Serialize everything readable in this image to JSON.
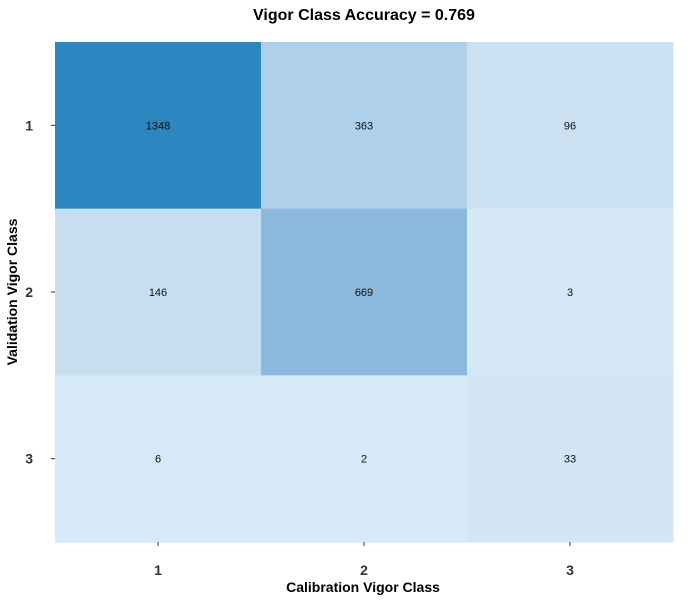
{
  "chart_data": {
    "type": "heatmap",
    "title": "Vigor Class  Accuracy =  0.769",
    "xlabel": "Calibration  Vigor Class",
    "ylabel": "Validation  Vigor Class",
    "x_categories": [
      "1",
      "2",
      "3"
    ],
    "y_categories": [
      "1",
      "2",
      "3"
    ],
    "cells": [
      {
        "x": "1",
        "y": "1",
        "value": 1348,
        "label": "1348",
        "color": "#2e86c1"
      },
      {
        "x": "2",
        "y": "1",
        "value": 363,
        "label": "363",
        "color": "#afd0ea"
      },
      {
        "x": "3",
        "y": "1",
        "value": 96,
        "label": "96",
        "color": "#cbe1f2"
      },
      {
        "x": "1",
        "y": "2",
        "value": 146,
        "label": "146",
        "color": "#c8dff2"
      },
      {
        "x": "2",
        "y": "2",
        "value": 669,
        "label": "669",
        "color": "#8db8dd"
      },
      {
        "x": "3",
        "y": "2",
        "value": 3,
        "label": "3",
        "color": "#d5e8f6"
      },
      {
        "x": "1",
        "y": "3",
        "value": 6,
        "label": "6",
        "color": "#d6e9f7"
      },
      {
        "x": "2",
        "y": "3",
        "value": 2,
        "label": "2",
        "color": "#d6e9f7"
      },
      {
        "x": "3",
        "y": "3",
        "value": 33,
        "label": "33",
        "color": "#d2e6f5"
      }
    ],
    "grid": false,
    "legend": "none"
  }
}
